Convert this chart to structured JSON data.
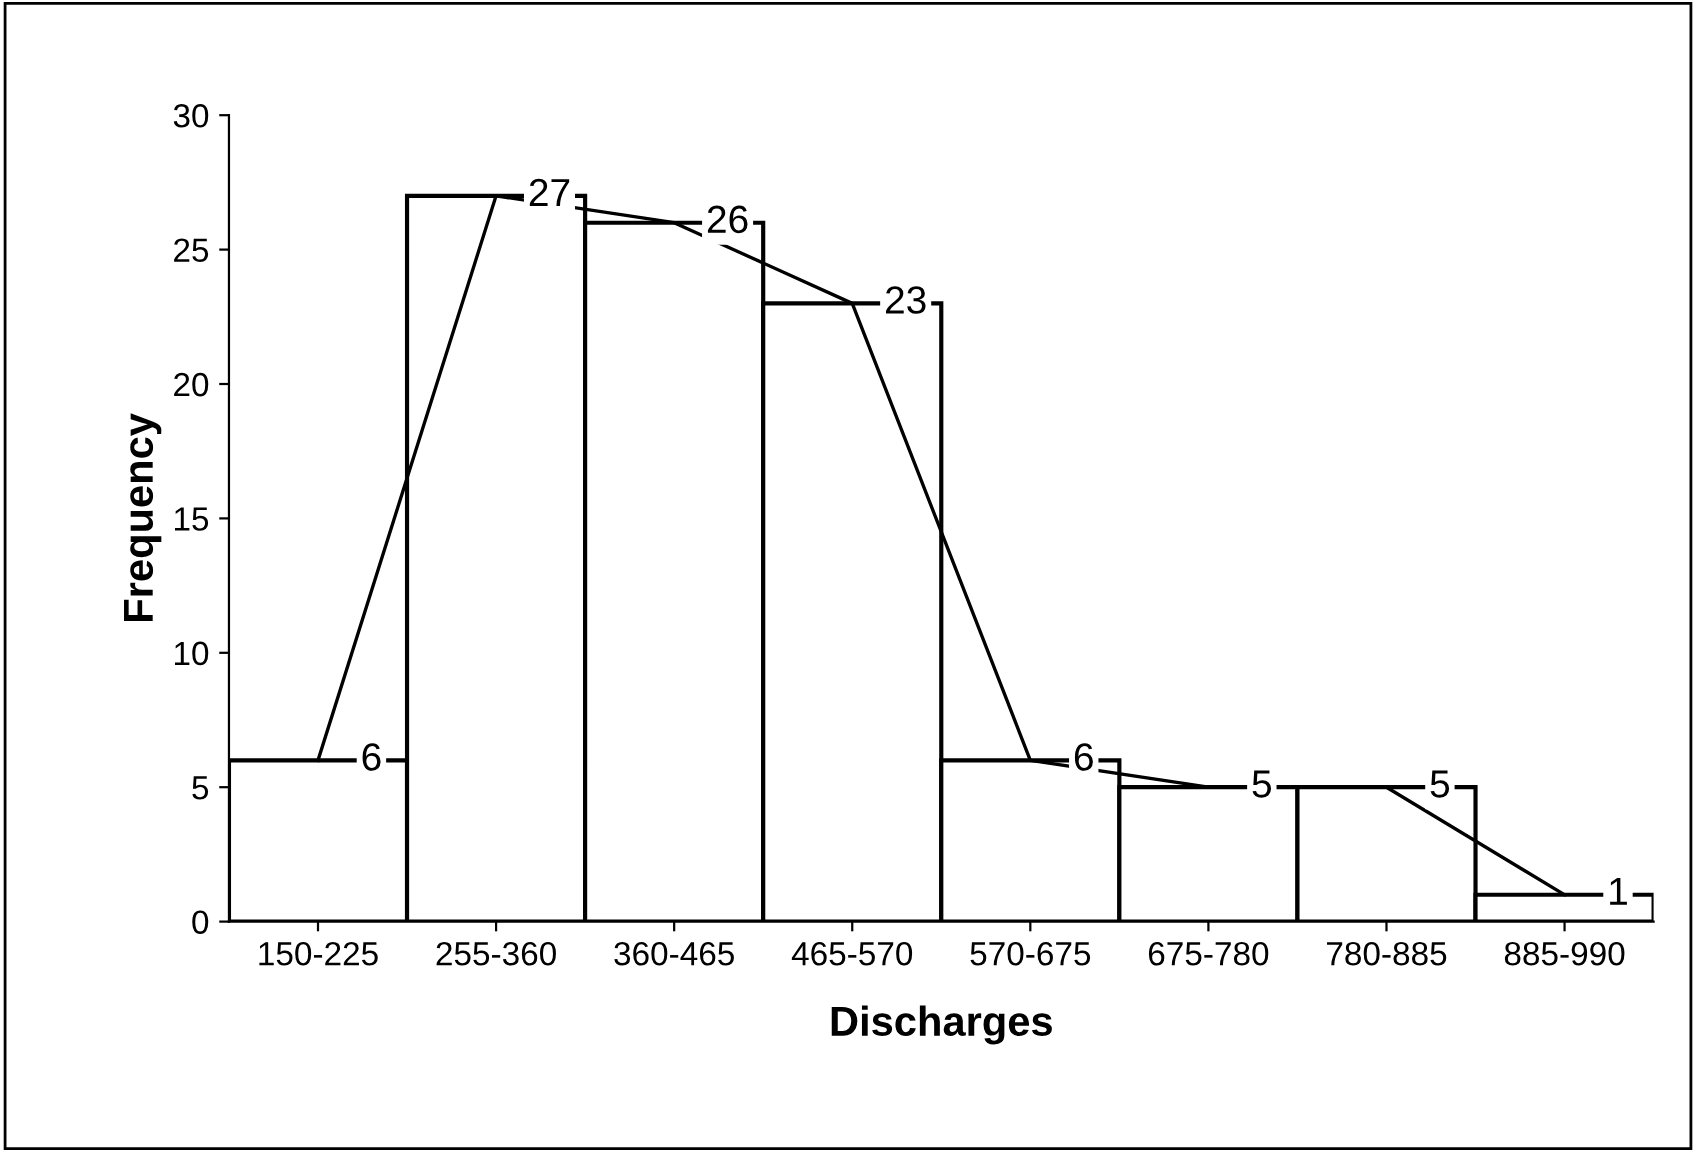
{
  "chart_data": {
    "type": "bar",
    "xlabel": "Discharges",
    "ylabel": "Frequency",
    "categories": [
      "150-225",
      "255-360",
      "360-465",
      "465-570",
      "570-675",
      "675-780",
      "780-885",
      "885-990"
    ],
    "series": [
      {
        "color": "#ffffff",
        "values": [
          6,
          27,
          26,
          23,
          6,
          5,
          5,
          1
        ],
        "value_labels": [
          "6",
          "27",
          "26",
          "23",
          "6",
          "5",
          "5",
          "1"
        ]
      },
      {
        "type": "line",
        "color": "#000000",
        "values": [
          6,
          27,
          26,
          23,
          6,
          5,
          5,
          1
        ]
      }
    ],
    "ylim": [
      0,
      30
    ],
    "yticks": [
      0,
      5,
      10,
      15,
      20,
      25,
      30
    ],
    "grid": false,
    "legend": false
  }
}
